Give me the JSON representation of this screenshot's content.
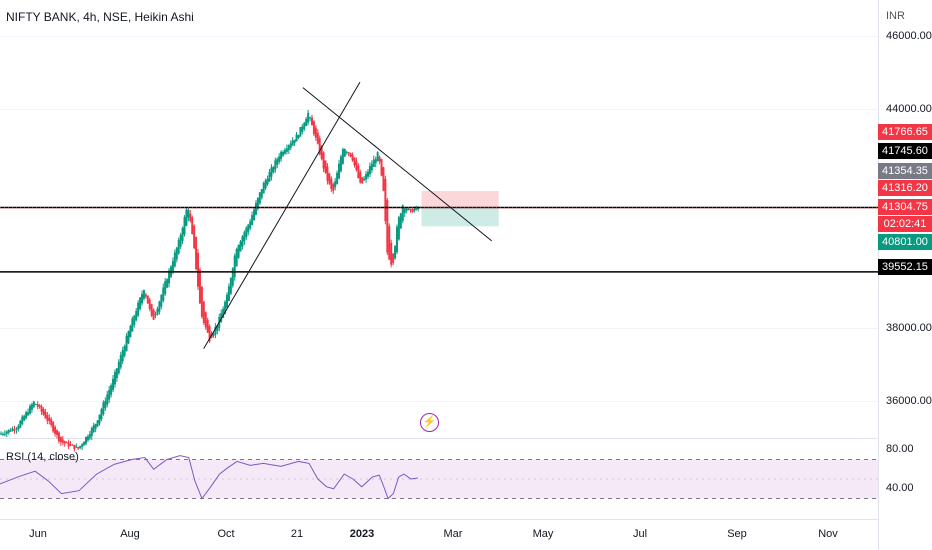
{
  "header": {
    "title": "NIFTY BANK, 4h, NSE, Heikin Ashi",
    "currency": "INR"
  },
  "rsi_pane": {
    "title": "RSI (14, close)",
    "ticks": [
      "80.00",
      "40.00"
    ]
  },
  "price_tags": [
    {
      "value": "41766.65",
      "color": "#f23645",
      "text_color": "#ffffff"
    },
    {
      "value": "41745.60",
      "color": "#000000",
      "text_color": "#ffffff"
    },
    {
      "value": "41354.35",
      "color": "#787b86",
      "text_color": "#ffffff"
    },
    {
      "value": "41316.20",
      "color": "#f23645",
      "text_color": "#ffffff"
    },
    {
      "value": "41304.75",
      "color": "#f23645",
      "text_color": "#ffffff"
    },
    {
      "value": "02:02:41",
      "color": "#f23645",
      "text_color": "#ffffff"
    },
    {
      "value": "40801.00",
      "color": "#089981",
      "text_color": "#ffffff"
    },
    {
      "value": "39552.15",
      "color": "#000000",
      "text_color": "#ffffff"
    }
  ],
  "chart_data": {
    "type": "candlestick",
    "style": "Heikin Ashi",
    "price_axis_ticks": [
      46000,
      44000,
      38000,
      36000
    ],
    "price_axis_labels": [
      "46000.00",
      "44000.00",
      "38000.00",
      "36000.00"
    ],
    "ylim": [
      35000,
      47000
    ],
    "x_ticks": [
      {
        "label": "Jun",
        "bold": false
      },
      {
        "label": "Aug",
        "bold": false
      },
      {
        "label": "Oct",
        "bold": false
      },
      {
        "label": "21",
        "bold": false
      },
      {
        "label": "2023",
        "bold": true
      },
      {
        "label": "Mar",
        "bold": false
      },
      {
        "label": "May",
        "bold": false
      },
      {
        "label": "Jul",
        "bold": false
      },
      {
        "label": "Sep",
        "bold": false
      },
      {
        "label": "Nov",
        "bold": false
      }
    ],
    "horizontal_levels": [
      41316.2,
      39552.15
    ],
    "current_price": 41304.75,
    "position_box": {
      "stop": 41766.65,
      "entry": 41304.75,
      "target": 40801.0
    },
    "trendlines": [
      {
        "name": "rising support",
        "from": [
          0.232,
          37450
        ],
        "to": [
          0.41,
          44750
        ]
      },
      {
        "name": "falling resistance",
        "from": [
          0.345,
          44600
        ],
        "to": [
          0.56,
          40400
        ]
      }
    ],
    "price_path": [
      [
        0.0,
        35100
      ],
      [
        0.02,
        35300
      ],
      [
        0.04,
        36000
      ],
      [
        0.055,
        35500
      ],
      [
        0.07,
        34900
      ],
      [
        0.09,
        34700
      ],
      [
        0.11,
        35400
      ],
      [
        0.13,
        36600
      ],
      [
        0.15,
        38100
      ],
      [
        0.165,
        39100
      ],
      [
        0.175,
        38200
      ],
      [
        0.19,
        39300
      ],
      [
        0.205,
        40400
      ],
      [
        0.215,
        41400
      ],
      [
        0.222,
        40200
      ],
      [
        0.23,
        38400
      ],
      [
        0.24,
        37700
      ],
      [
        0.25,
        38200
      ],
      [
        0.26,
        38900
      ],
      [
        0.27,
        40200
      ],
      [
        0.285,
        40900
      ],
      [
        0.3,
        41900
      ],
      [
        0.32,
        42800
      ],
      [
        0.34,
        43300
      ],
      [
        0.352,
        43900
      ],
      [
        0.362,
        43100
      ],
      [
        0.372,
        42200
      ],
      [
        0.38,
        41700
      ],
      [
        0.392,
        43000
      ],
      [
        0.402,
        42700
      ],
      [
        0.412,
        41900
      ],
      [
        0.424,
        42500
      ],
      [
        0.432,
        42800
      ],
      [
        0.438,
        41700
      ],
      [
        0.442,
        40100
      ],
      [
        0.448,
        39700
      ],
      [
        0.454,
        40900
      ],
      [
        0.46,
        41400
      ],
      [
        0.468,
        41200
      ],
      [
        0.476,
        41300
      ]
    ],
    "rsi": {
      "levels": [
        70,
        30
      ],
      "ylim": [
        10,
        90
      ],
      "values": [
        [
          0.0,
          45
        ],
        [
          0.02,
          52
        ],
        [
          0.04,
          58
        ],
        [
          0.055,
          48
        ],
        [
          0.07,
          35
        ],
        [
          0.09,
          38
        ],
        [
          0.11,
          55
        ],
        [
          0.13,
          65
        ],
        [
          0.15,
          70
        ],
        [
          0.165,
          72
        ],
        [
          0.175,
          60
        ],
        [
          0.19,
          70
        ],
        [
          0.205,
          74
        ],
        [
          0.215,
          72
        ],
        [
          0.222,
          48
        ],
        [
          0.23,
          30
        ],
        [
          0.24,
          42
        ],
        [
          0.25,
          55
        ],
        [
          0.26,
          62
        ],
        [
          0.27,
          68
        ],
        [
          0.285,
          64
        ],
        [
          0.3,
          66
        ],
        [
          0.32,
          63
        ],
        [
          0.34,
          68
        ],
        [
          0.352,
          66
        ],
        [
          0.362,
          50
        ],
        [
          0.372,
          42
        ],
        [
          0.38,
          40
        ],
        [
          0.392,
          55
        ],
        [
          0.402,
          50
        ],
        [
          0.412,
          42
        ],
        [
          0.424,
          52
        ],
        [
          0.432,
          54
        ],
        [
          0.438,
          40
        ],
        [
          0.442,
          30
        ],
        [
          0.448,
          35
        ],
        [
          0.454,
          52
        ],
        [
          0.46,
          55
        ],
        [
          0.468,
          50
        ],
        [
          0.476,
          51
        ]
      ]
    }
  }
}
